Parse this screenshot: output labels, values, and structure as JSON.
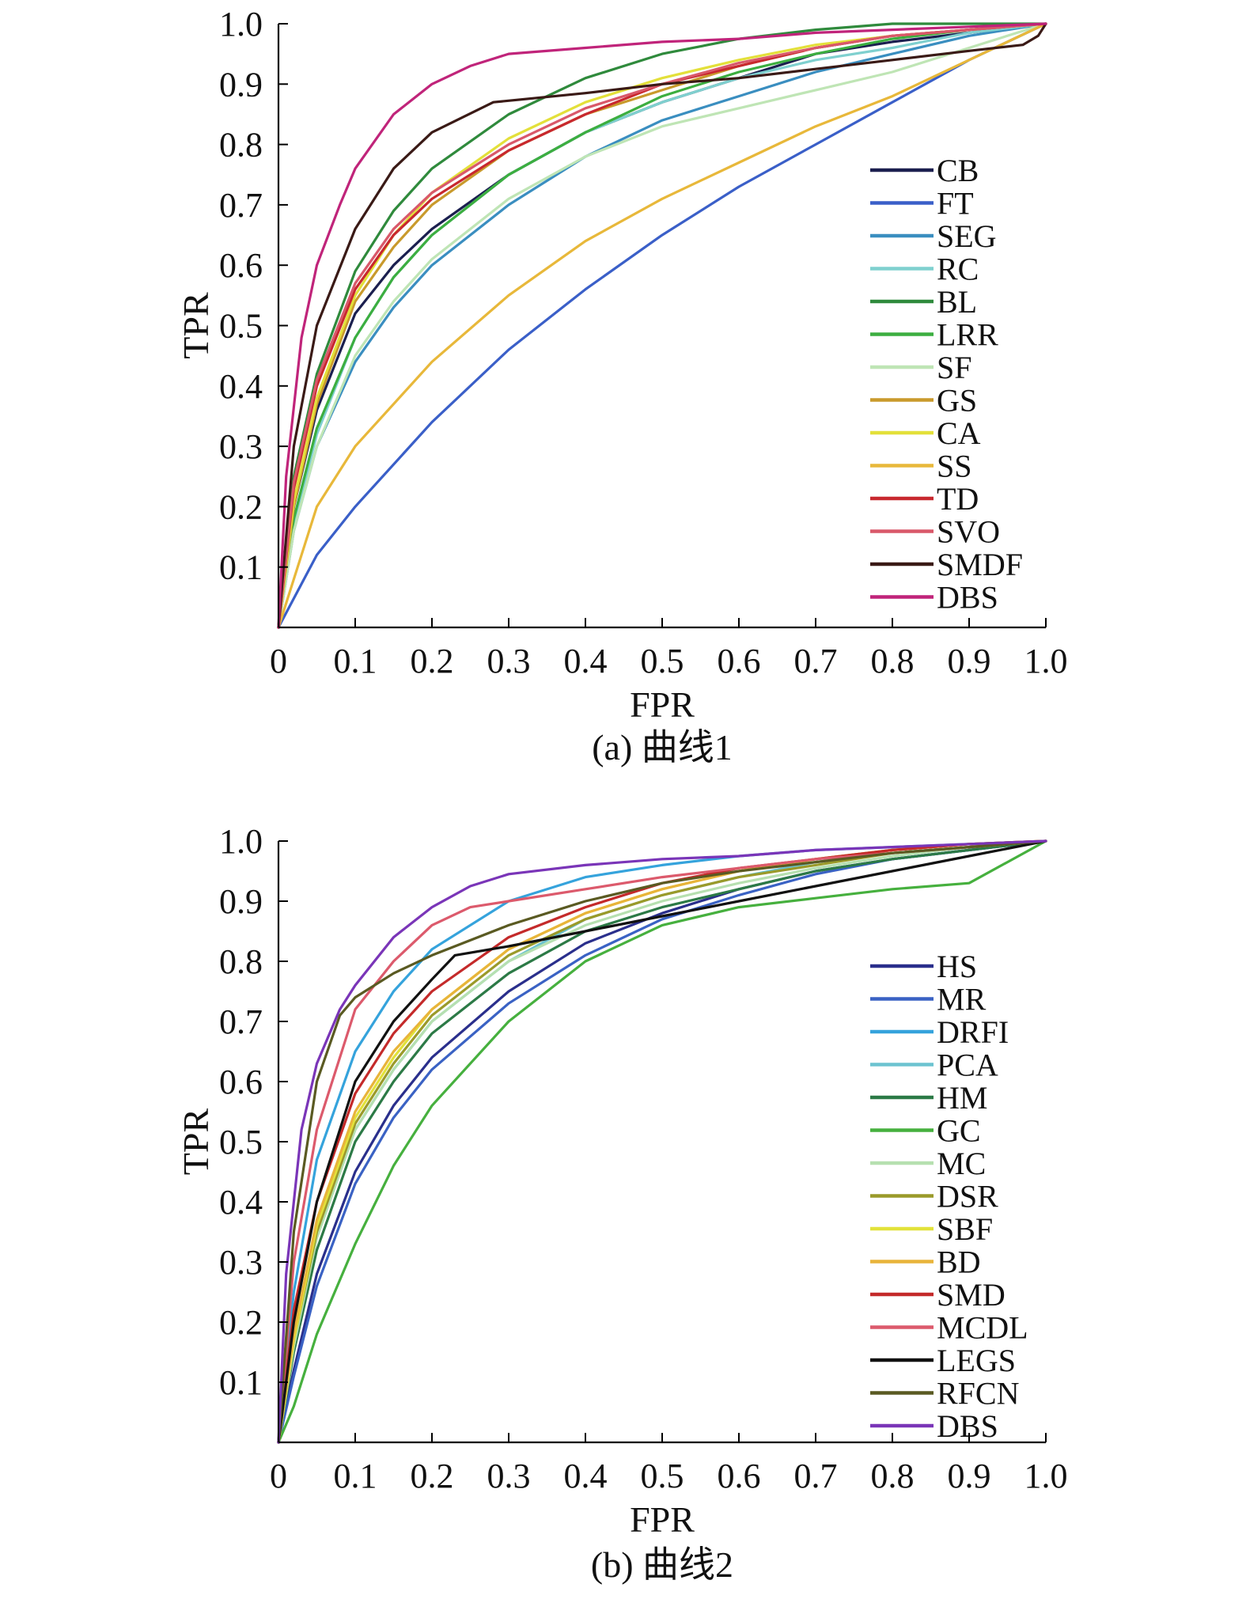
{
  "chart_data": [
    {
      "type": "line",
      "id": "a",
      "caption": "(a) 曲线1",
      "xlabel": "FPR",
      "ylabel": "TPR",
      "xlim": [
        0,
        1
      ],
      "ylim": [
        0,
        1
      ],
      "x_tick_labels": [
        "0",
        "0.1",
        "0.2",
        "0.3",
        "0.4",
        "0.5",
        "0.6",
        "0.7",
        "0.8",
        "0.9",
        "1.0"
      ],
      "y_tick_labels": [
        "0.1",
        "0.2",
        "0.3",
        "0.4",
        "0.5",
        "0.6",
        "0.7",
        "0.8",
        "0.9",
        "1.0"
      ],
      "legend_position": "right",
      "series": [
        {
          "name": "CB",
          "color": "#1b1f4f",
          "x": [
            0,
            0.02,
            0.05,
            0.1,
            0.15,
            0.2,
            0.3,
            0.4,
            0.5,
            0.6,
            0.7,
            0.8,
            0.9,
            1.0
          ],
          "y": [
            0,
            0.2,
            0.36,
            0.52,
            0.6,
            0.66,
            0.75,
            0.82,
            0.87,
            0.91,
            0.95,
            0.97,
            0.985,
            1.0
          ]
        },
        {
          "name": "FT",
          "color": "#3a5fc8",
          "x": [
            0,
            0.05,
            0.1,
            0.2,
            0.3,
            0.4,
            0.5,
            0.6,
            0.7,
            0.8,
            0.9,
            1.0
          ],
          "y": [
            0,
            0.12,
            0.2,
            0.34,
            0.46,
            0.56,
            0.65,
            0.73,
            0.8,
            0.87,
            0.94,
            1.0
          ]
        },
        {
          "name": "SEG",
          "color": "#3a8ec0",
          "x": [
            0,
            0.02,
            0.05,
            0.1,
            0.15,
            0.2,
            0.3,
            0.4,
            0.5,
            0.6,
            0.7,
            0.8,
            0.9,
            1.0
          ],
          "y": [
            0,
            0.16,
            0.3,
            0.44,
            0.53,
            0.6,
            0.7,
            0.78,
            0.84,
            0.88,
            0.92,
            0.95,
            0.98,
            1.0
          ]
        },
        {
          "name": "RC",
          "color": "#7fd0cf",
          "x": [
            0,
            0.02,
            0.05,
            0.1,
            0.15,
            0.2,
            0.3,
            0.4,
            0.5,
            0.6,
            0.7,
            0.8,
            0.9,
            1.0
          ],
          "y": [
            0,
            0.17,
            0.32,
            0.48,
            0.58,
            0.65,
            0.75,
            0.82,
            0.87,
            0.91,
            0.94,
            0.96,
            0.985,
            1.0
          ]
        },
        {
          "name": "BL",
          "color": "#2f8a3c",
          "x": [
            0,
            0.02,
            0.05,
            0.1,
            0.15,
            0.2,
            0.3,
            0.4,
            0.5,
            0.6,
            0.7,
            0.8,
            0.9,
            1.0
          ],
          "y": [
            0,
            0.25,
            0.42,
            0.59,
            0.69,
            0.76,
            0.85,
            0.91,
            0.95,
            0.975,
            0.99,
            1.0,
            1.0,
            1.0
          ]
        },
        {
          "name": "LRR",
          "color": "#3cae40",
          "x": [
            0,
            0.02,
            0.05,
            0.1,
            0.15,
            0.2,
            0.3,
            0.4,
            0.5,
            0.6,
            0.7,
            0.8,
            0.9,
            1.0
          ],
          "y": [
            0,
            0.18,
            0.33,
            0.48,
            0.58,
            0.65,
            0.75,
            0.82,
            0.88,
            0.92,
            0.95,
            0.975,
            0.99,
            1.0
          ]
        },
        {
          "name": "SF",
          "color": "#bfe5b5",
          "x": [
            0,
            0.02,
            0.05,
            0.1,
            0.15,
            0.2,
            0.3,
            0.4,
            0.5,
            0.6,
            0.7,
            0.8,
            0.9,
            1.0
          ],
          "y": [
            0,
            0.16,
            0.3,
            0.45,
            0.54,
            0.61,
            0.71,
            0.78,
            0.83,
            0.86,
            0.89,
            0.92,
            0.96,
            1.0
          ]
        },
        {
          "name": "GS",
          "color": "#c99a2c",
          "x": [
            0,
            0.02,
            0.05,
            0.1,
            0.15,
            0.2,
            0.3,
            0.4,
            0.5,
            0.6,
            0.7,
            0.8,
            0.9,
            1.0
          ],
          "y": [
            0,
            0.2,
            0.37,
            0.54,
            0.63,
            0.7,
            0.79,
            0.85,
            0.89,
            0.93,
            0.96,
            0.98,
            0.99,
            1.0
          ]
        },
        {
          "name": "CA",
          "color": "#e3e03a",
          "x": [
            0,
            0.02,
            0.05,
            0.1,
            0.15,
            0.2,
            0.3,
            0.4,
            0.5,
            0.6,
            0.7,
            0.8,
            0.9,
            1.0
          ],
          "y": [
            0,
            0.21,
            0.38,
            0.55,
            0.65,
            0.72,
            0.81,
            0.87,
            0.91,
            0.94,
            0.965,
            0.98,
            0.99,
            1.0
          ]
        },
        {
          "name": "SS",
          "color": "#e8b83a",
          "x": [
            0,
            0.05,
            0.1,
            0.2,
            0.3,
            0.4,
            0.5,
            0.6,
            0.7,
            0.8,
            0.9,
            1.0
          ],
          "y": [
            0,
            0.2,
            0.3,
            0.44,
            0.55,
            0.64,
            0.71,
            0.77,
            0.83,
            0.88,
            0.94,
            1.0
          ]
        },
        {
          "name": "TD",
          "color": "#c8282e",
          "x": [
            0,
            0.02,
            0.05,
            0.1,
            0.15,
            0.2,
            0.3,
            0.4,
            0.5,
            0.6,
            0.7,
            0.8,
            0.9,
            1.0
          ],
          "y": [
            0,
            0.23,
            0.4,
            0.56,
            0.65,
            0.71,
            0.79,
            0.85,
            0.9,
            0.93,
            0.96,
            0.98,
            0.99,
            1.0
          ]
        },
        {
          "name": "SVO",
          "color": "#d9586a",
          "x": [
            0,
            0.02,
            0.05,
            0.1,
            0.15,
            0.2,
            0.3,
            0.4,
            0.5,
            0.6,
            0.7,
            0.8,
            0.9,
            1.0
          ],
          "y": [
            0,
            0.24,
            0.41,
            0.57,
            0.66,
            0.72,
            0.8,
            0.86,
            0.9,
            0.935,
            0.96,
            0.98,
            0.99,
            1.0
          ]
        },
        {
          "name": "SMDF",
          "color": "#3a1a16",
          "x": [
            0,
            0.02,
            0.05,
            0.1,
            0.15,
            0.2,
            0.28,
            0.4,
            0.5,
            0.6,
            0.7,
            0.8,
            0.9,
            0.97,
            0.99,
            1.0
          ],
          "y": [
            0,
            0.3,
            0.5,
            0.66,
            0.76,
            0.82,
            0.87,
            0.885,
            0.9,
            0.91,
            0.925,
            0.94,
            0.955,
            0.965,
            0.98,
            1.0
          ]
        },
        {
          "name": "DBS",
          "color": "#c0247a",
          "x": [
            0,
            0.01,
            0.03,
            0.05,
            0.08,
            0.1,
            0.15,
            0.2,
            0.25,
            0.3,
            0.4,
            0.5,
            0.6,
            0.7,
            0.8,
            0.9,
            1.0
          ],
          "y": [
            0,
            0.25,
            0.48,
            0.6,
            0.7,
            0.76,
            0.85,
            0.9,
            0.93,
            0.95,
            0.96,
            0.97,
            0.975,
            0.985,
            0.99,
            0.995,
            1.0
          ]
        }
      ]
    },
    {
      "type": "line",
      "id": "b",
      "caption": "(b) 曲线2",
      "xlabel": "FPR",
      "ylabel": "TPR",
      "xlim": [
        0,
        1
      ],
      "ylim": [
        0,
        1
      ],
      "x_tick_labels": [
        "0",
        "0.1",
        "0.2",
        "0.3",
        "0.4",
        "0.5",
        "0.6",
        "0.7",
        "0.8",
        "0.9",
        "1.0"
      ],
      "y_tick_labels": [
        "0.1",
        "0.2",
        "0.3",
        "0.4",
        "0.5",
        "0.6",
        "0.7",
        "0.8",
        "0.9",
        "1.0"
      ],
      "legend_position": "right",
      "series": [
        {
          "name": "HS",
          "color": "#2a2f8c",
          "x": [
            0,
            0.02,
            0.05,
            0.1,
            0.15,
            0.2,
            0.3,
            0.4,
            0.5,
            0.6,
            0.7,
            0.8,
            0.9,
            1.0
          ],
          "y": [
            0,
            0.12,
            0.28,
            0.45,
            0.56,
            0.64,
            0.75,
            0.83,
            0.88,
            0.92,
            0.95,
            0.97,
            0.985,
            1.0
          ]
        },
        {
          "name": "MR",
          "color": "#3a62c4",
          "x": [
            0,
            0.02,
            0.05,
            0.1,
            0.15,
            0.2,
            0.3,
            0.4,
            0.5,
            0.6,
            0.7,
            0.8,
            0.9,
            1.0
          ],
          "y": [
            0,
            0.11,
            0.26,
            0.43,
            0.54,
            0.62,
            0.73,
            0.81,
            0.87,
            0.91,
            0.945,
            0.97,
            0.985,
            1.0
          ]
        },
        {
          "name": "DRFI",
          "color": "#35a3dc",
          "x": [
            0,
            0.02,
            0.05,
            0.1,
            0.15,
            0.2,
            0.3,
            0.4,
            0.5,
            0.6,
            0.7,
            0.8,
            0.9,
            1.0
          ],
          "y": [
            0,
            0.25,
            0.47,
            0.65,
            0.75,
            0.82,
            0.9,
            0.94,
            0.96,
            0.975,
            0.985,
            0.99,
            0.995,
            1.0
          ]
        },
        {
          "name": "PCA",
          "color": "#6cc3d0",
          "x": [
            0,
            0.02,
            0.05,
            0.1,
            0.15,
            0.2,
            0.3,
            0.4,
            0.5,
            0.6,
            0.7,
            0.8,
            0.9,
            1.0
          ],
          "y": [
            0,
            0.18,
            0.35,
            0.52,
            0.62,
            0.7,
            0.8,
            0.87,
            0.91,
            0.94,
            0.965,
            0.98,
            0.99,
            1.0
          ]
        },
        {
          "name": "HM",
          "color": "#2c7a46",
          "x": [
            0,
            0.02,
            0.05,
            0.1,
            0.15,
            0.2,
            0.3,
            0.4,
            0.5,
            0.6,
            0.7,
            0.8,
            0.9,
            1.0
          ],
          "y": [
            0,
            0.15,
            0.32,
            0.5,
            0.6,
            0.68,
            0.78,
            0.85,
            0.89,
            0.92,
            0.95,
            0.97,
            0.985,
            1.0
          ]
        },
        {
          "name": "GC",
          "color": "#46b03e",
          "x": [
            0,
            0.02,
            0.05,
            0.1,
            0.15,
            0.2,
            0.3,
            0.4,
            0.5,
            0.6,
            0.7,
            0.8,
            0.9,
            1.0
          ],
          "y": [
            0,
            0.06,
            0.18,
            0.33,
            0.46,
            0.56,
            0.7,
            0.8,
            0.86,
            0.89,
            0.905,
            0.92,
            0.93,
            1.0
          ]
        },
        {
          "name": "MC",
          "color": "#b6e0b0",
          "x": [
            0,
            0.02,
            0.05,
            0.1,
            0.15,
            0.2,
            0.3,
            0.4,
            0.5,
            0.6,
            0.7,
            0.8,
            0.9,
            1.0
          ],
          "y": [
            0,
            0.16,
            0.34,
            0.52,
            0.62,
            0.7,
            0.8,
            0.86,
            0.9,
            0.93,
            0.955,
            0.975,
            0.99,
            1.0
          ]
        },
        {
          "name": "DSR",
          "color": "#9a9a2a",
          "x": [
            0,
            0.02,
            0.05,
            0.1,
            0.15,
            0.2,
            0.3,
            0.4,
            0.5,
            0.6,
            0.7,
            0.8,
            0.9,
            1.0
          ],
          "y": [
            0,
            0.17,
            0.35,
            0.53,
            0.63,
            0.71,
            0.81,
            0.87,
            0.91,
            0.94,
            0.96,
            0.98,
            0.99,
            1.0
          ]
        },
        {
          "name": "SBF",
          "color": "#e2e23a",
          "x": [
            0,
            0.02,
            0.05,
            0.1,
            0.15,
            0.2,
            0.3,
            0.4,
            0.5,
            0.6,
            0.7,
            0.8,
            0.9,
            1.0
          ],
          "y": [
            0,
            0.17,
            0.36,
            0.54,
            0.64,
            0.72,
            0.82,
            0.88,
            0.92,
            0.95,
            0.97,
            0.985,
            0.995,
            1.0
          ]
        },
        {
          "name": "BD",
          "color": "#e8b43a",
          "x": [
            0,
            0.02,
            0.05,
            0.1,
            0.15,
            0.2,
            0.3,
            0.4,
            0.5,
            0.6,
            0.7,
            0.8,
            0.9,
            1.0
          ],
          "y": [
            0,
            0.18,
            0.37,
            0.55,
            0.65,
            0.72,
            0.82,
            0.88,
            0.92,
            0.95,
            0.97,
            0.985,
            0.995,
            1.0
          ]
        },
        {
          "name": "SMD",
          "color": "#c42a2a",
          "x": [
            0,
            0.02,
            0.05,
            0.1,
            0.15,
            0.2,
            0.3,
            0.4,
            0.5,
            0.6,
            0.7,
            0.8,
            0.9,
            1.0
          ],
          "y": [
            0,
            0.22,
            0.4,
            0.58,
            0.68,
            0.75,
            0.84,
            0.89,
            0.93,
            0.955,
            0.97,
            0.985,
            0.995,
            1.0
          ]
        },
        {
          "name": "MCDL",
          "color": "#dc5a6c",
          "x": [
            0,
            0.02,
            0.05,
            0.1,
            0.15,
            0.2,
            0.25,
            0.3,
            0.4,
            0.5,
            0.6,
            0.7,
            0.8,
            0.9,
            1.0
          ],
          "y": [
            0,
            0.3,
            0.52,
            0.72,
            0.8,
            0.86,
            0.89,
            0.9,
            0.92,
            0.94,
            0.955,
            0.97,
            0.98,
            0.99,
            1.0
          ]
        },
        {
          "name": "LEGS",
          "color": "#111111",
          "x": [
            0,
            0.02,
            0.05,
            0.1,
            0.15,
            0.2,
            0.23,
            0.3,
            0.4,
            0.5,
            0.6,
            0.7,
            0.8,
            0.9,
            1.0
          ],
          "y": [
            0,
            0.2,
            0.4,
            0.6,
            0.7,
            0.77,
            0.81,
            0.825,
            0.85,
            0.875,
            0.9,
            0.925,
            0.95,
            0.975,
            1.0
          ]
        },
        {
          "name": "RFCN",
          "color": "#5a5a22",
          "x": [
            0,
            0.02,
            0.05,
            0.08,
            0.1,
            0.15,
            0.2,
            0.3,
            0.4,
            0.5,
            0.6,
            0.7,
            0.8,
            0.9,
            1.0
          ],
          "y": [
            0,
            0.35,
            0.6,
            0.71,
            0.74,
            0.78,
            0.81,
            0.86,
            0.9,
            0.93,
            0.95,
            0.965,
            0.98,
            0.99,
            1.0
          ]
        },
        {
          "name": "DBS",
          "color": "#7a35b8",
          "x": [
            0,
            0.01,
            0.03,
            0.05,
            0.08,
            0.1,
            0.15,
            0.2,
            0.25,
            0.3,
            0.4,
            0.5,
            0.6,
            0.7,
            0.8,
            0.9,
            1.0
          ],
          "y": [
            0,
            0.28,
            0.52,
            0.63,
            0.72,
            0.76,
            0.84,
            0.89,
            0.925,
            0.945,
            0.96,
            0.97,
            0.975,
            0.985,
            0.99,
            0.995,
            1.0
          ]
        }
      ]
    }
  ]
}
